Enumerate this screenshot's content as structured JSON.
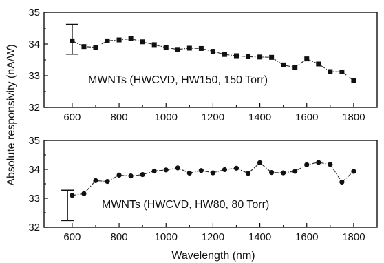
{
  "chart_data": [
    {
      "type": "line",
      "marker": "square",
      "annotation": "MWNTs (HWCVD, HW150, 150 Torr)",
      "xlim": [
        480,
        1900
      ],
      "ylim": [
        32,
        35
      ],
      "xticks": [
        600,
        800,
        1000,
        1200,
        1400,
        1600,
        1800
      ],
      "yticks": [
        32,
        33,
        34,
        35
      ],
      "x": [
        600,
        650,
        700,
        750,
        800,
        850,
        900,
        950,
        1000,
        1050,
        1100,
        1150,
        1200,
        1250,
        1300,
        1350,
        1400,
        1450,
        1500,
        1550,
        1600,
        1650,
        1700,
        1750,
        1800
      ],
      "values": [
        34.1,
        33.92,
        33.9,
        34.1,
        34.13,
        34.17,
        34.07,
        33.98,
        33.89,
        33.83,
        33.87,
        33.86,
        33.77,
        33.67,
        33.63,
        33.6,
        33.59,
        33.58,
        33.34,
        33.26,
        33.53,
        33.37,
        33.13,
        33.12,
        32.85
      ],
      "error_bar": {
        "x": 600,
        "y": 34.1,
        "low": 33.68,
        "high": 34.62
      }
    },
    {
      "type": "line",
      "marker": "circle",
      "annotation": "MWNTs (HWCVD, HW80, 80 Torr)",
      "xlim": [
        480,
        1900
      ],
      "ylim": [
        32,
        35
      ],
      "xticks": [
        600,
        800,
        1000,
        1200,
        1400,
        1600,
        1800
      ],
      "yticks": [
        32,
        33,
        34,
        35
      ],
      "x": [
        600,
        650,
        700,
        750,
        800,
        850,
        900,
        950,
        1000,
        1050,
        1100,
        1150,
        1200,
        1250,
        1300,
        1350,
        1400,
        1450,
        1500,
        1550,
        1600,
        1650,
        1700,
        1750,
        1800
      ],
      "values": [
        33.1,
        33.16,
        33.61,
        33.58,
        33.8,
        33.77,
        33.82,
        33.94,
        33.98,
        34.05,
        33.87,
        33.96,
        33.88,
        33.99,
        34.04,
        33.86,
        34.23,
        33.89,
        33.88,
        33.93,
        34.16,
        34.24,
        34.17,
        33.56,
        33.93
      ],
      "error_bar": {
        "x": 580,
        "y": 32.75,
        "low": 32.23,
        "high": 33.28
      }
    }
  ],
  "xlabel": "Wavelength (nm)",
  "ylabel": "Absolute responsivity (nA/W)"
}
